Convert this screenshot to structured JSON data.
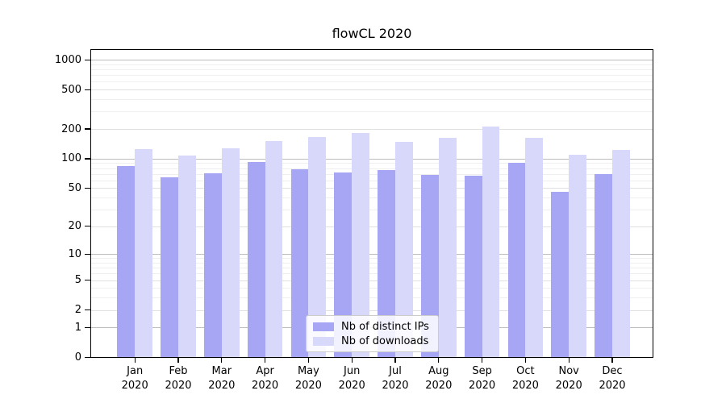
{
  "chart_data": {
    "type": "bar",
    "title": "flowCL 2020",
    "categories": [
      "Jan 2020",
      "Feb 2020",
      "Mar 2020",
      "Apr 2020",
      "May 2020",
      "Jun 2020",
      "Jul 2020",
      "Aug 2020",
      "Sep 2020",
      "Oct 2020",
      "Nov 2020",
      "Dec 2020"
    ],
    "series": [
      {
        "name": "Nb of distinct IPs",
        "color": "#a6a6f4",
        "values": [
          84,
          65,
          71,
          92,
          78,
          72,
          77,
          68,
          67,
          90,
          46,
          70
        ]
      },
      {
        "name": "Nb of downloads",
        "color": "#d8d8fa",
        "values": [
          126,
          107,
          127,
          150,
          167,
          182,
          149,
          163,
          210,
          162,
          110,
          122
        ]
      }
    ],
    "xlabel": "",
    "ylabel": "",
    "yscale": "symlog",
    "y_ticks": [
      0,
      1,
      2,
      5,
      10,
      20,
      50,
      100,
      200,
      500,
      1000
    ],
    "y_minor_gridlines": [
      3,
      4,
      6,
      7,
      8,
      9,
      30,
      40,
      60,
      70,
      80,
      90,
      300,
      400,
      600,
      700,
      800,
      900
    ],
    "ylim": [
      0,
      1230
    ],
    "grid": true,
    "legend_position": "lower center",
    "bar_colors": {
      "distinct_ips": "#a6a6f4",
      "downloads": "#d8d8fa"
    }
  }
}
